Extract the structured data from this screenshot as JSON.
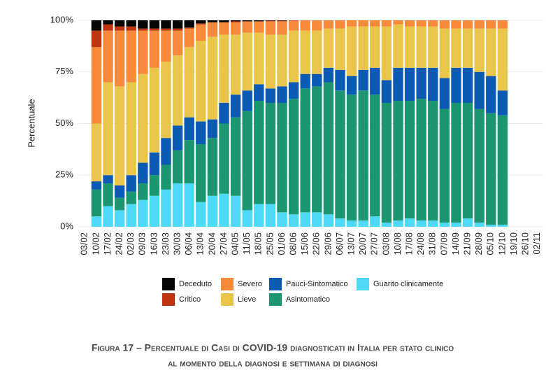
{
  "chart_data": {
    "type": "stacked_bar",
    "ylabel": "Percentuale",
    "categories": [
      "03/02",
      "10/02",
      "17/02",
      "24/02",
      "02/03",
      "09/03",
      "16/03",
      "23/03",
      "30/03",
      "06/04",
      "13/04",
      "20/04",
      "27/04",
      "04/05",
      "11/05",
      "18/05",
      "25/05",
      "01/06",
      "08/06",
      "15/06",
      "22/06",
      "29/06",
      "06/07",
      "13/07",
      "20/07",
      "27/07",
      "03/08",
      "10/08",
      "17/08",
      "24/08",
      "31/08",
      "07/09",
      "14/09",
      "21/09",
      "28/09",
      "05/10",
      "12/10",
      "19/10",
      "26/10",
      "02/11"
    ],
    "ylim": [
      0,
      100
    ],
    "yticks": [
      {
        "value": 0,
        "label": "0%"
      },
      {
        "value": 25,
        "label": "25%"
      },
      {
        "value": 50,
        "label": "50%"
      },
      {
        "value": 75,
        "label": "75%"
      },
      {
        "value": 100,
        "label": "100%"
      }
    ],
    "grid": true,
    "series": [
      {
        "name": "Guarito clinicamente",
        "color": "#4dd9f7",
        "values": [
          null,
          5,
          10,
          8,
          11,
          13,
          15,
          18,
          21,
          21,
          12,
          15,
          16,
          15,
          8,
          11,
          11,
          7,
          6,
          7,
          7,
          6,
          4,
          3,
          3,
          5,
          2,
          3,
          4,
          3,
          3,
          2,
          2,
          4,
          2,
          1,
          1,
          null,
          null,
          null
        ]
      },
      {
        "name": "Asintomatico",
        "color": "#1b9670",
        "values": [
          null,
          13,
          11,
          6,
          6,
          8,
          10,
          12,
          16,
          21,
          28,
          28,
          34,
          38,
          48,
          50,
          49,
          53,
          56,
          60,
          61,
          64,
          62,
          61,
          63,
          59,
          58,
          58,
          57,
          59,
          58,
          55,
          58,
          56,
          55,
          54,
          53,
          null,
          null,
          null
        ]
      },
      {
        "name": "Pauci-Sintomatico",
        "color": "#0b5ab4",
        "values": [
          null,
          4,
          4,
          6,
          8,
          10,
          11,
          13,
          12,
          11,
          11,
          9,
          10,
          11,
          10,
          8,
          7,
          8,
          8,
          7,
          6,
          7,
          10,
          9,
          10,
          13,
          11,
          16,
          16,
          15,
          16,
          15,
          17,
          17,
          18,
          18,
          12,
          null,
          null,
          null
        ]
      },
      {
        "name": "Lieve",
        "color": "#e9c54b",
        "values": [
          null,
          28,
          45,
          48,
          45,
          43,
          41,
          37,
          34,
          34,
          39,
          40,
          33,
          29,
          28,
          25,
          26,
          25,
          25,
          21,
          21,
          19,
          20,
          24,
          21,
          20,
          26,
          21,
          20,
          20,
          20,
          24,
          19,
          19,
          21,
          23,
          30,
          null,
          null,
          null
        ]
      },
      {
        "name": "Severo",
        "color": "#f88a3c",
        "values": [
          null,
          37,
          25,
          27,
          25,
          21,
          18,
          15,
          12,
          9,
          8,
          7,
          6,
          6,
          5.5,
          5.5,
          6.5,
          6.5,
          4.8,
          5,
          5,
          4,
          4,
          3,
          3,
          3,
          3,
          2,
          3,
          3,
          3,
          4,
          4,
          4,
          4,
          4,
          4,
          null,
          null,
          null
        ]
      },
      {
        "name": "Critico",
        "color": "#bf340f",
        "values": [
          null,
          8,
          3,
          2,
          2,
          1,
          1,
          1,
          1,
          0.5,
          0.5,
          0,
          0,
          0.5,
          0,
          0,
          0.3,
          0.3,
          0.2,
          0,
          0,
          0,
          0,
          0,
          0,
          0,
          0,
          0,
          0,
          0,
          0,
          0,
          0,
          0,
          0,
          0,
          0,
          null,
          null,
          null
        ]
      },
      {
        "name": "Deceduto",
        "color": "#050505",
        "values": [
          null,
          5,
          2,
          3,
          3,
          4,
          4,
          4,
          4,
          3.5,
          1.5,
          1,
          1,
          0.5,
          0.5,
          0.5,
          0.2,
          0.2,
          0,
          0,
          0,
          0,
          0,
          0,
          0,
          0,
          0,
          0,
          0,
          0,
          0,
          0,
          0,
          0,
          0,
          0,
          0,
          null,
          null,
          null
        ]
      }
    ],
    "caption": [
      "Figura 17 – Percentuale di Casi di COVID-19 diagnosticati in Italia per stato clinico",
      "al momento della diagnosi e settimana di diagnosi"
    ]
  }
}
